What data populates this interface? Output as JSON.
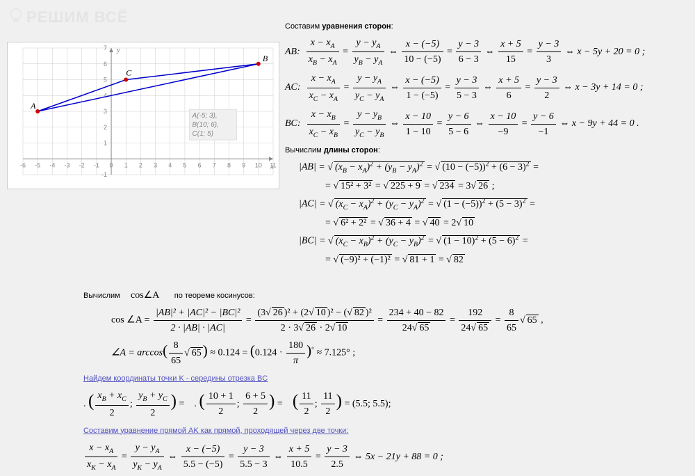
{
  "watermark": "РЕШИМ ВСЁ",
  "graph": {
    "points": {
      "A": {
        "x": -5,
        "y": 3,
        "label": "A"
      },
      "B": {
        "x": 10,
        "y": 6,
        "label": "B"
      },
      "C": {
        "x": 1,
        "y": 5,
        "label": "C"
      }
    },
    "x_range": [
      -6,
      11
    ],
    "y_range": [
      -1,
      7
    ],
    "x_ticks": [
      -6,
      -5,
      -4,
      -3,
      -2,
      -1,
      0,
      1,
      2,
      3,
      4,
      5,
      6,
      7,
      8,
      9,
      10,
      11
    ],
    "y_ticks": [
      -1,
      0,
      1,
      2,
      3,
      4,
      5,
      6,
      7
    ],
    "axis_labels": {
      "x": "x",
      "y": "y"
    },
    "grid_color": "#cccccc",
    "line_color": "#0000cc",
    "point_color": "#cc0000",
    "legend": [
      "A(-5; 3),",
      "B(10; 6),",
      "C(1; 5)"
    ]
  },
  "section1_header_a": "Составим ",
  "section1_header_b": "уравнения сторон",
  "section1_header_c": ":",
  "eq_AB": {
    "label": "AB:",
    "frac1_num": "x − x",
    "frac1_num_sub": "A",
    "frac1_den_l": "x",
    "frac1_den_lsub": "B",
    "frac1_den_r": " − x",
    "frac1_den_rsub": "A",
    "eq": " = ",
    "frac2_num": "y − y",
    "frac2_num_sub": "A",
    "frac2_den_l": "y",
    "frac2_den_lsub": "B",
    "frac2_den_r": " − y",
    "frac2_den_rsub": "A",
    "arrow": "  ⇔  ",
    "frac3_num": "x − (−5)",
    "frac3_den": "10 − (−5)",
    "frac4_num": "y − 3",
    "frac4_den": "6 − 3",
    "frac5_num": "x + 5",
    "frac5_den": "15",
    "frac6_num": "y − 3",
    "frac6_den": "3",
    "result": "x − 5y + 20 = 0 ;"
  },
  "eq_AC": {
    "label": "AC:",
    "frac1_den_l": "x",
    "frac1_den_lsub": "C",
    "frac1_den_r": " − x",
    "frac1_den_rsub": "A",
    "frac2_den_l": "y",
    "frac2_den_lsub": "C",
    "frac2_den_r": " − y",
    "frac2_den_rsub": "A",
    "frac3_num": "x − (−5)",
    "frac3_den": "1 − (−5)",
    "frac4_num": "y − 3",
    "frac4_den": "5 − 3",
    "frac5_num": "x + 5",
    "frac5_den": "6",
    "frac6_num": "y − 3",
    "frac6_den": "2",
    "result": "x − 3y + 14 = 0 ;"
  },
  "eq_BC": {
    "label": "BC:",
    "frac1_num": "x − x",
    "frac1_num_sub": "B",
    "frac1_den_l": "x",
    "frac1_den_lsub": "C",
    "frac1_den_r": " − x",
    "frac1_den_rsub": "B",
    "frac2_num": "y − y",
    "frac2_num_sub": "B",
    "frac2_den_l": "y",
    "frac2_den_lsub": "C",
    "frac2_den_r": " − y",
    "frac2_den_rsub": "B",
    "frac3_num": "x − 10",
    "frac3_den": "1 − 10",
    "frac4_num": "y − 6",
    "frac4_den": "5 − 6",
    "frac5_num": "x − 10",
    "frac5_den": "−9",
    "frac6_num": "y − 6",
    "frac6_den": "−1",
    "result": "x − 9y + 44 = 0 ."
  },
  "section2_header_a": "Вычислим ",
  "section2_header_b": "длины сторон",
  "section2_header_c": ":",
  "len_AB": {
    "lhs": "|AB| = ",
    "expr1_inside": "(x_B − x_A)² + (y_B − y_A)²",
    "expr2_inside": "(10 − (−5))² + (6 − 3)²",
    "line2a": "15² + 3²",
    "line2b": "225 + 9",
    "line2c": "234",
    "line2d": " = 3",
    "line2e": "26",
    "line2f": " ;"
  },
  "len_AC": {
    "lhs": "|AC| = ",
    "expr1_inside": "(x_C − x_A)² + (y_C − y_A)²",
    "expr2_inside": "(1 − (−5))² + (5 − 3)²",
    "line2a": "6² + 2²",
    "line2b": "36 + 4",
    "line2c": "40",
    "line2d": " = 2",
    "line2e": "10"
  },
  "len_BC": {
    "lhs": "|BC| = ",
    "expr1_inside": "(x_C − x_B)² + (y_C − y_B)²",
    "expr2_inside": "(1 − 10)² + (5 − 6)²",
    "line2a": "(−9)² + (−1)²",
    "line2b": "81 + 1",
    "line2c": "82"
  },
  "cosA_header_a": "Вычислим",
  "cosA_header_b": "cos∠A",
  "cosA_header_c": "по теореме косинусов:",
  "cosA": {
    "lhs": "cos ∠A = ",
    "frac1_num": "|AB|² + |AC|² − |BC|²",
    "frac1_den": "2 · |AB| · |AC|",
    "frac2_num_a": "(3",
    "frac2_num_b": "26",
    "frac2_num_c": ")² + (2",
    "frac2_num_d": "10",
    "frac2_num_e": ")² − (",
    "frac2_num_f": "82",
    "frac2_num_g": ")²",
    "frac2_den_a": "2 · 3",
    "frac2_den_b": "26",
    "frac2_den_c": " · 2",
    "frac2_den_d": "10",
    "frac3_num": "234 + 40 − 82",
    "frac3_den_a": "24",
    "frac3_den_b": "65",
    "frac4_num": "192",
    "frac5_num": "8",
    "frac5_den": "65",
    "frac5_sqrt": "65",
    "comma": " ,"
  },
  "angleA": {
    "lhs": "∠A = arccos",
    "paren_num": "8",
    "paren_den": "65",
    "paren_sqrt": "65",
    "approx1": " ≈ 0.124 = ",
    "paren2_a": "0.124 · ",
    "paren2_num": "180",
    "paren2_den": "π",
    "deg": "°",
    "approx2": " ≈ 7.125° ;"
  },
  "link1": "Найдем координаты точки K - середины отрезка BC",
  "midpoint": {
    "lhs_dot": ". ",
    "p1_num1": "x_B + x_C",
    "p1_num2": "y_B + y_C",
    "p1_den": "2",
    "eq": " = ",
    "dot": ". ",
    "p2_num1": "10 + 1",
    "p2_num2": "6 + 5",
    "p2_den": "2",
    "p3_num1": "11",
    "p3_num2": "11",
    "p3_den": "2",
    "result": "   (5.5; 5.5);"
  },
  "link2": "Составим уравнение прямой АK как прямой, проходящей через две точки:",
  "eq_AK": {
    "frac1_num": "x − x",
    "frac1_num_sub": "A",
    "frac1_den_l": "x",
    "frac1_den_lsub": "K",
    "frac1_den_r": " − x",
    "frac1_den_rsub": "A",
    "frac2_num": "y − y",
    "frac2_num_sub": "A",
    "frac2_den_l": "y",
    "frac2_den_lsub": "K",
    "frac2_den_r": " − y",
    "frac2_den_rsub": "A",
    "arrow": "  ⇔  ",
    "frac3_num": "x − (−5)",
    "frac3_den": "5.5 − (−5)",
    "frac4_num": "y − 3",
    "frac4_den": "5.5 − 3",
    "frac5_num": "x + 5",
    "frac5_den": "10.5",
    "frac6_num": "y − 3",
    "frac6_den": "2.5",
    "result": "5x − 21y + 88 = 0 ;"
  }
}
